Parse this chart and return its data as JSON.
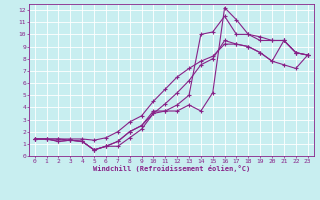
{
  "xlabel": "Windchill (Refroidissement éolien,°C)",
  "bg_color": "#c8eef0",
  "grid_color": "#ffffff",
  "line_color": "#882288",
  "xlim": [
    -0.5,
    23.5
  ],
  "ylim": [
    0,
    12.5
  ],
  "xticks": [
    0,
    1,
    2,
    3,
    4,
    5,
    6,
    7,
    8,
    9,
    10,
    11,
    12,
    13,
    14,
    15,
    16,
    17,
    18,
    19,
    20,
    21,
    22,
    23
  ],
  "yticks": [
    0,
    1,
    2,
    3,
    4,
    5,
    6,
    7,
    8,
    9,
    10,
    11,
    12
  ],
  "series": [
    {
      "x": [
        0,
        1,
        2,
        3,
        4,
        5,
        6,
        7,
        8,
        9,
        10,
        11,
        12,
        13,
        14,
        15,
        16,
        17,
        18,
        19,
        20,
        21,
        22,
        23
      ],
      "y": [
        1.4,
        1.4,
        1.2,
        1.3,
        1.2,
        0.5,
        0.8,
        1.2,
        2.0,
        2.5,
        3.7,
        3.7,
        3.7,
        4.2,
        3.7,
        5.2,
        12.2,
        11.2,
        10.0,
        9.8,
        9.5,
        9.5,
        8.5,
        8.3
      ]
    },
    {
      "x": [
        0,
        1,
        2,
        3,
        4,
        5,
        6,
        7,
        8,
        9,
        10,
        11,
        12,
        13,
        14,
        15,
        16,
        17,
        18,
        19,
        20,
        21,
        22,
        23
      ],
      "y": [
        1.4,
        1.4,
        1.2,
        1.3,
        1.2,
        0.5,
        0.8,
        1.2,
        2.0,
        2.5,
        3.5,
        3.7,
        4.2,
        5.0,
        10.0,
        10.2,
        11.5,
        10.0,
        10.0,
        9.5,
        9.5,
        9.5,
        8.5,
        8.3
      ]
    },
    {
      "x": [
        0,
        2,
        3,
        4,
        5,
        6,
        7,
        8,
        9,
        10,
        11,
        12,
        13,
        14,
        15,
        16,
        17,
        18,
        19,
        20,
        21,
        22,
        23
      ],
      "y": [
        1.4,
        1.4,
        1.3,
        1.2,
        0.5,
        0.8,
        0.8,
        1.5,
        2.2,
        3.5,
        4.3,
        5.2,
        6.2,
        7.5,
        8.0,
        9.5,
        9.2,
        9.0,
        8.5,
        7.8,
        9.5,
        8.5,
        8.3
      ]
    },
    {
      "x": [
        0,
        1,
        2,
        3,
        4,
        5,
        6,
        7,
        8,
        9,
        10,
        11,
        12,
        13,
        14,
        15,
        16,
        17,
        18,
        19,
        20,
        21,
        22,
        23
      ],
      "y": [
        1.4,
        1.4,
        1.4,
        1.4,
        1.4,
        1.3,
        1.5,
        2.0,
        2.8,
        3.3,
        4.5,
        5.5,
        6.5,
        7.2,
        7.8,
        8.2,
        9.2,
        9.2,
        9.0,
        8.5,
        7.8,
        7.5,
        7.2,
        8.3
      ]
    }
  ]
}
